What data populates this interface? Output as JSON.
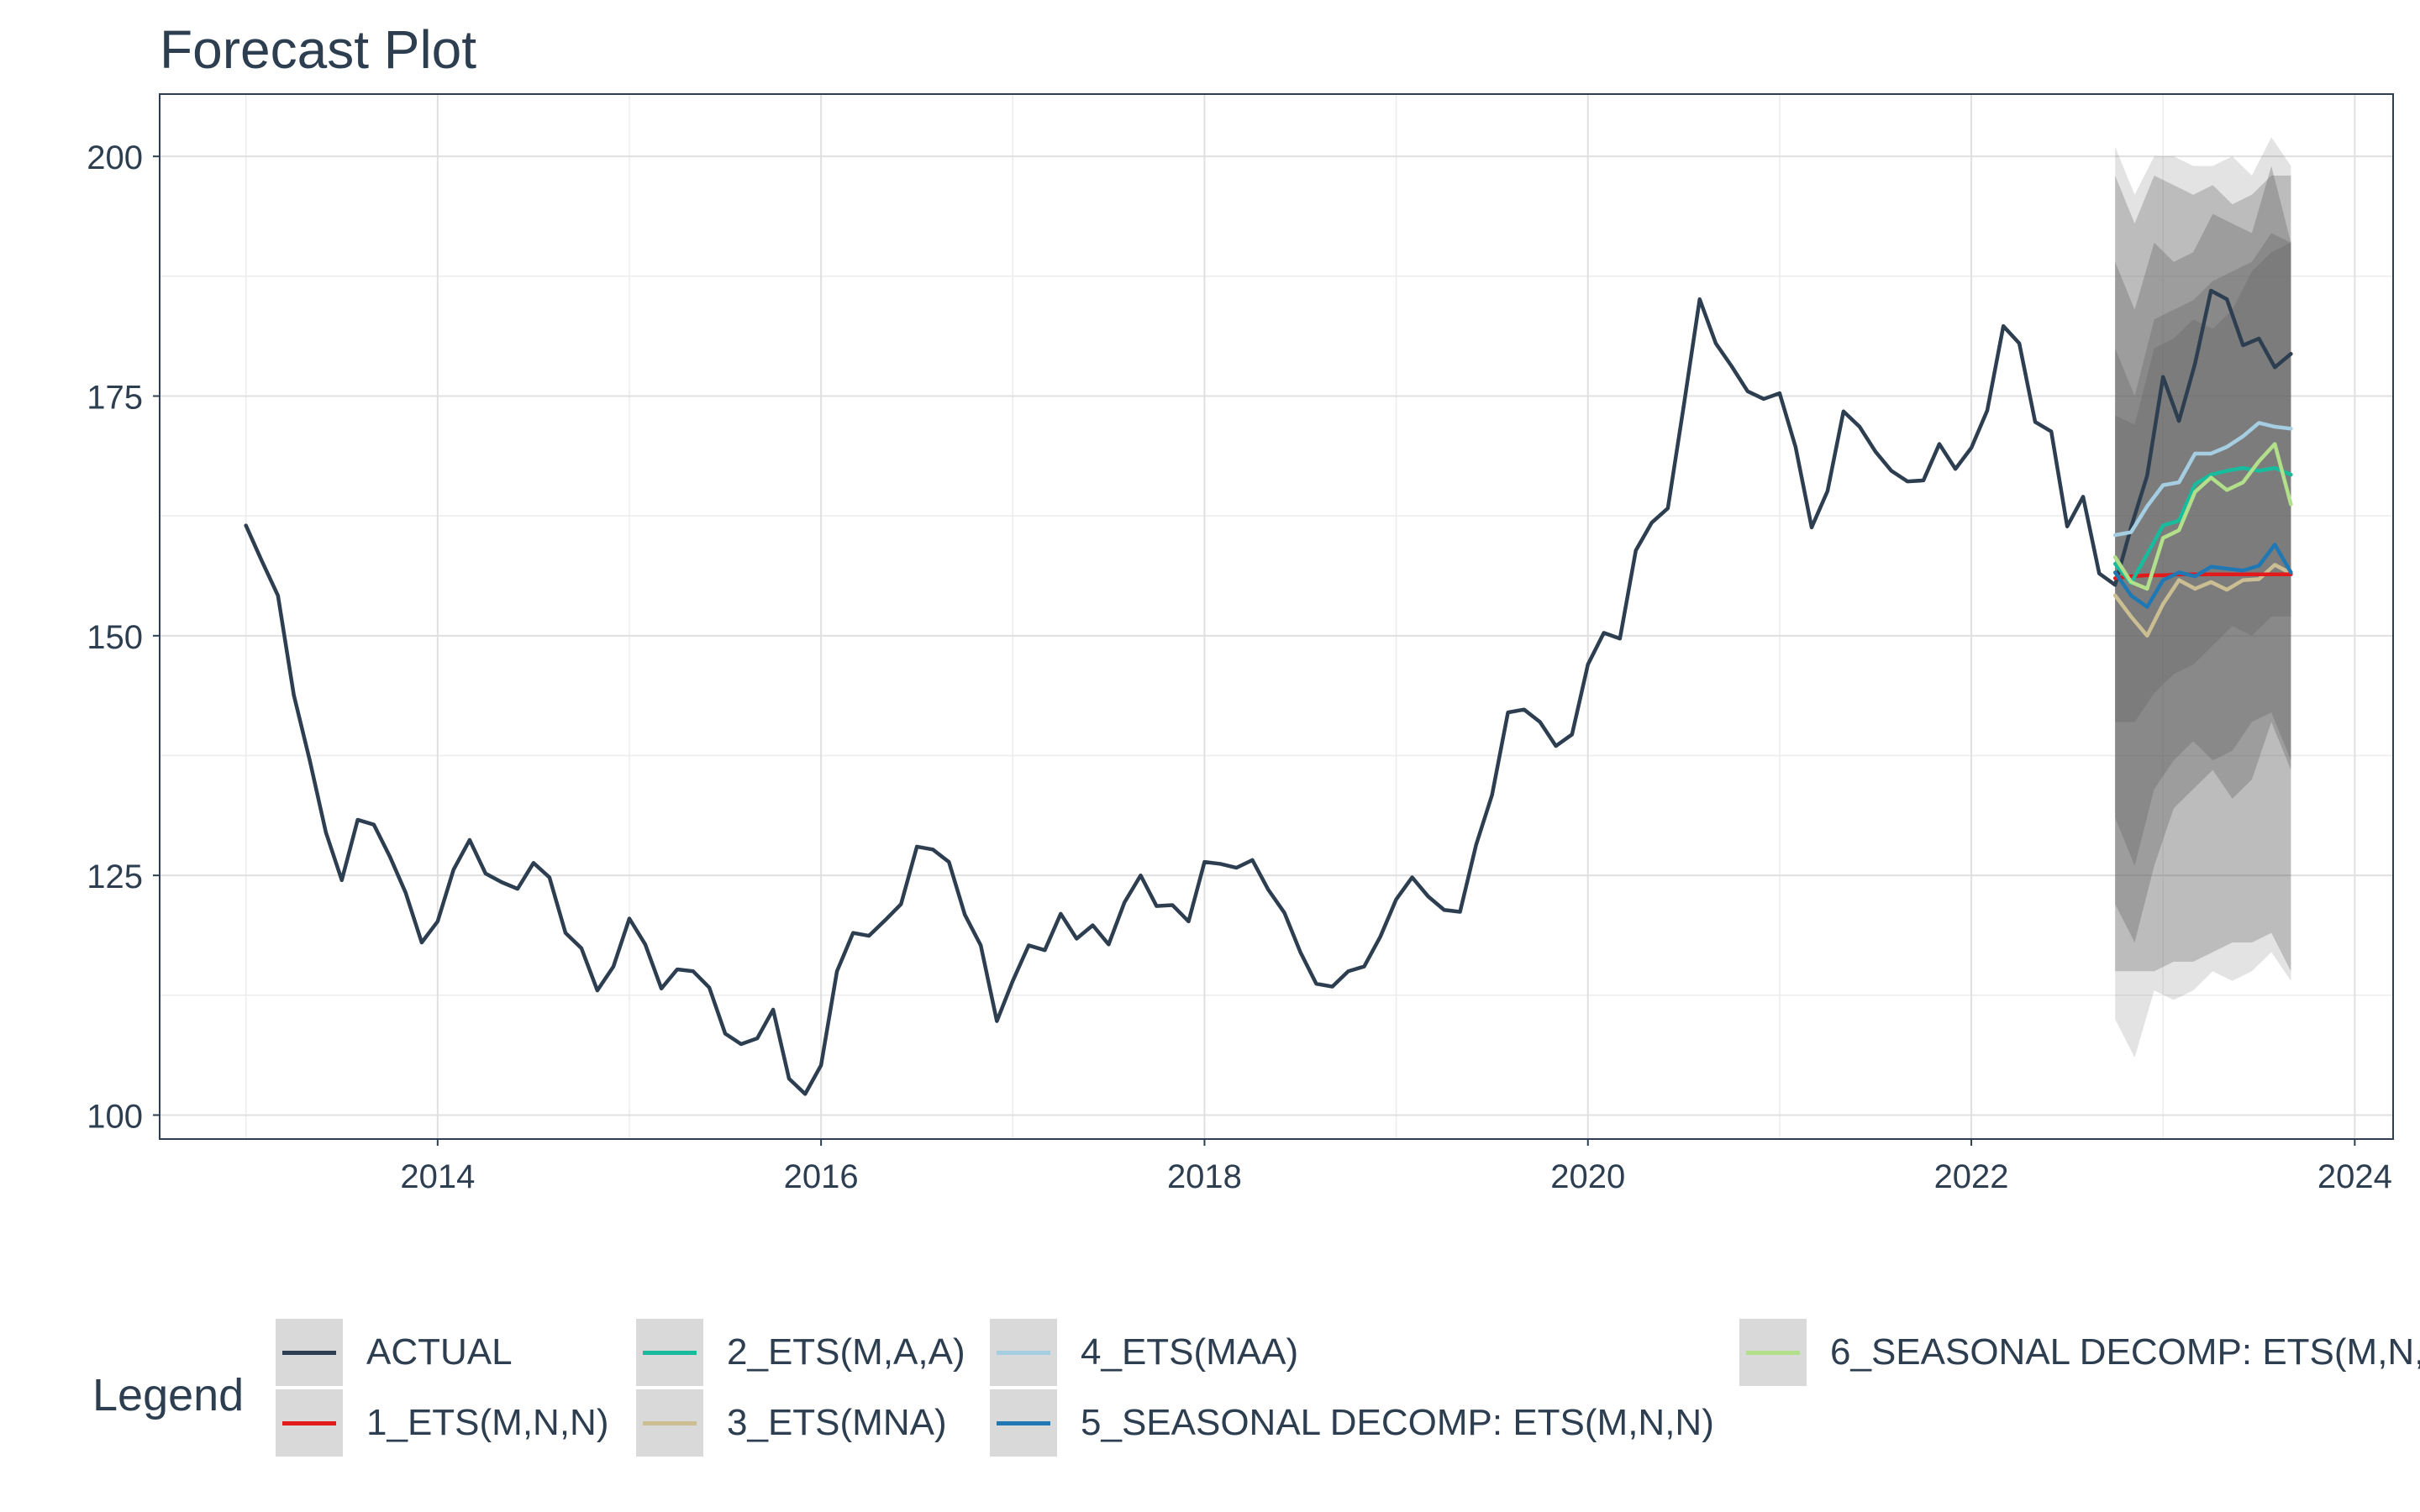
{
  "title": "Forecast Plot",
  "chart_data": {
    "type": "line",
    "title": "Forecast Plot",
    "xlabel": "",
    "ylabel": "",
    "xlim": [
      2012.55,
      2024.2
    ],
    "ylim": [
      97.5,
      206.5
    ],
    "x_ticks": [
      2014,
      2016,
      2018,
      2020,
      2022,
      2024
    ],
    "y_ticks": [
      100,
      125,
      150,
      175,
      200
    ],
    "grid": true,
    "legend_position": "bottom",
    "legend_title": "Legend",
    "series": [
      {
        "name": "ACTUAL",
        "color": "#2c3e50",
        "x": [
          2013.0,
          2013.083,
          2013.167,
          2013.25,
          2013.333,
          2013.417,
          2013.5,
          2013.583,
          2013.667,
          2013.75,
          2013.833,
          2013.917,
          2014.0,
          2014.083,
          2014.167,
          2014.25,
          2014.333,
          2014.417,
          2014.5,
          2014.583,
          2014.667,
          2014.75,
          2014.833,
          2014.917,
          2015.0,
          2015.083,
          2015.167,
          2015.25,
          2015.333,
          2015.417,
          2015.5,
          2015.583,
          2015.667,
          2015.75,
          2015.833,
          2015.917,
          2016.0,
          2016.083,
          2016.167,
          2016.25,
          2016.333,
          2016.417,
          2016.5,
          2016.583,
          2016.667,
          2016.75,
          2016.833,
          2016.917,
          2017.0,
          2017.083,
          2017.167,
          2017.25,
          2017.333,
          2017.417,
          2017.5,
          2017.583,
          2017.667,
          2017.75,
          2017.833,
          2017.917,
          2018.0,
          2018.083,
          2018.167,
          2018.25,
          2018.333,
          2018.417,
          2018.5,
          2018.583,
          2018.667,
          2018.75,
          2018.833,
          2018.917,
          2019.0,
          2019.083,
          2019.167,
          2019.25,
          2019.333,
          2019.417,
          2019.5,
          2019.583,
          2019.667,
          2019.75,
          2019.833,
          2019.917,
          2020.0,
          2020.083,
          2020.167,
          2020.25,
          2020.333,
          2020.417,
          2020.5,
          2020.583,
          2020.667,
          2020.75,
          2020.833,
          2020.917,
          2021.0,
          2021.083,
          2021.167,
          2021.25,
          2021.333,
          2021.417,
          2021.5,
          2021.583,
          2021.667,
          2021.75,
          2021.833,
          2021.917,
          2022.0,
          2022.083,
          2022.167,
          2022.25,
          2022.333,
          2022.417,
          2022.5,
          2022.583,
          2022.667,
          2022.75,
          2022.833,
          2022.917,
          2023.0,
          2023.083,
          2023.167,
          2023.25,
          2023.333,
          2023.417,
          2023.5,
          2023.583,
          2023.667
        ],
        "values": [
          161.5,
          157.8,
          154.2,
          143.8,
          137.0,
          129.5,
          124.5,
          130.8,
          130.3,
          127.0,
          123.2,
          118.0,
          120.2,
          125.6,
          128.7,
          125.2,
          124.3,
          123.6,
          126.3,
          124.8,
          119.0,
          117.4,
          113.0,
          115.5,
          120.5,
          117.8,
          113.2,
          115.2,
          115.0,
          113.3,
          108.5,
          107.4,
          108.0,
          111.0,
          103.8,
          102.2,
          105.2,
          115.0,
          119.0,
          118.7,
          120.3,
          122.0,
          128.0,
          127.7,
          126.4,
          120.9,
          117.7,
          109.8,
          114.0,
          117.7,
          117.2,
          121.0,
          118.4,
          119.8,
          117.8,
          122.2,
          125.0,
          121.8,
          121.9,
          120.2,
          126.4,
          126.2,
          125.8,
          126.6,
          123.5,
          121.1,
          117.0,
          113.7,
          113.4,
          115.0,
          115.5,
          118.6,
          122.5,
          124.8,
          122.8,
          121.4,
          121.2,
          128.2,
          133.4,
          142.0,
          142.3,
          141.0,
          138.5,
          139.7,
          147.0,
          150.3,
          149.7,
          158.9,
          161.8,
          163.3,
          174.0,
          185.1,
          180.5,
          178.1,
          175.5,
          174.7,
          175.3,
          169.7,
          161.3,
          165.1,
          173.4,
          171.8,
          169.2,
          167.2,
          166.1,
          166.2,
          170.0,
          167.4,
          169.6,
          173.5,
          182.3,
          180.5,
          172.3,
          171.3,
          161.4,
          164.5,
          156.5,
          155.3,
          161.3,
          166.7,
          177.0,
          172.4,
          178.4,
          186.0,
          185.1,
          180.3,
          181.0,
          178.0,
          179.4
        ]
      },
      {
        "name": "1_ETS(M,N,N)",
        "color": "#e31a1c",
        "x": [
          2022.75,
          2022.833,
          2022.917,
          2023.0,
          2023.083,
          2023.167,
          2023.25,
          2023.333,
          2023.417,
          2023.5,
          2023.583,
          2023.667
        ],
        "values": [
          156.0,
          156.2,
          156.3,
          156.3,
          156.4,
          156.4,
          156.4,
          156.4,
          156.4,
          156.4,
          156.4,
          156.4
        ]
      },
      {
        "name": "2_ETS(M,A,A)",
        "color": "#18bc9c",
        "x": [
          2022.75,
          2022.833,
          2022.917,
          2023.0,
          2023.083,
          2023.167,
          2023.25,
          2023.333,
          2023.417,
          2023.5,
          2023.583,
          2023.667
        ],
        "values": [
          157.5,
          155.5,
          158.5,
          161.5,
          162.0,
          165.8,
          166.8,
          167.2,
          167.5,
          167.2,
          167.5,
          166.8
        ]
      },
      {
        "name": "3_ETS(MNA)",
        "color": "#ccbe93",
        "x": [
          2022.75,
          2022.833,
          2022.917,
          2023.0,
          2023.083,
          2023.167,
          2023.25,
          2023.333,
          2023.417,
          2023.5,
          2023.583,
          2023.667
        ],
        "values": [
          154.2,
          152.0,
          150.0,
          153.3,
          155.8,
          154.9,
          155.6,
          154.8,
          155.8,
          155.9,
          157.4,
          156.5
        ]
      },
      {
        "name": "4_ETS(MAA)",
        "color": "#a6cee3",
        "x": [
          2022.75,
          2022.833,
          2022.917,
          2023.0,
          2023.083,
          2023.167,
          2023.25,
          2023.333,
          2023.417,
          2023.5,
          2023.583,
          2023.667
        ],
        "values": [
          160.5,
          160.8,
          163.5,
          165.7,
          166.0,
          169.0,
          169.0,
          169.7,
          170.8,
          172.2,
          171.8,
          171.6
        ]
      },
      {
        "name": "5_SEASONAL DECOMP: ETS(M,N,N)",
        "color": "#1f78b4",
        "x": [
          2022.75,
          2022.833,
          2022.917,
          2023.0,
          2023.083,
          2023.167,
          2023.25,
          2023.333,
          2023.417,
          2023.5,
          2023.583,
          2023.667
        ],
        "values": [
          156.6,
          154.2,
          153.0,
          155.8,
          156.6,
          156.2,
          157.2,
          157.0,
          156.8,
          157.3,
          159.5,
          156.6
        ]
      },
      {
        "name": "6_SEASONAL DECOMP: ETS(M,N,",
        "color": "#b2df8a",
        "x": [
          2022.75,
          2022.833,
          2022.917,
          2023.0,
          2023.083,
          2023.167,
          2023.25,
          2023.333,
          2023.417,
          2023.5,
          2023.583,
          2023.667
        ],
        "values": [
          158.2,
          155.6,
          154.9,
          160.2,
          161.0,
          165.0,
          166.5,
          165.2,
          166.0,
          168.2,
          170.0,
          163.7
        ]
      }
    ],
    "bands": [
      {
        "x": [
          2022.75,
          2023.667
        ],
        "values": [
          [
            110,
            201
          ],
          [
            106,
            196
          ],
          [
            113,
            200
          ],
          [
            112,
            200
          ],
          [
            113,
            199
          ],
          [
            115,
            199
          ],
          [
            114,
            200
          ],
          [
            115,
            198
          ],
          [
            117,
            202
          ],
          [
            114,
            199
          ]
        ],
        "opacity": 0.18,
        "color": "#646464"
      },
      {
        "x": [
          2022.75,
          2023.667
        ],
        "values": [
          [
            115,
            198
          ],
          [
            115,
            193
          ],
          [
            115,
            198
          ],
          [
            116,
            197
          ],
          [
            116,
            196
          ],
          [
            117,
            197
          ],
          [
            118,
            195
          ],
          [
            118,
            196
          ],
          [
            119,
            198
          ],
          [
            115,
            198
          ]
        ],
        "opacity": 0.3,
        "color": "#646464"
      },
      {
        "x": [
          2022.75,
          2023.667
        ],
        "values": [
          [
            122,
            189
          ],
          [
            118,
            184
          ],
          [
            126,
            191
          ],
          [
            132,
            189
          ],
          [
            134,
            190
          ],
          [
            136,
            194
          ],
          [
            133,
            193
          ],
          [
            135,
            192
          ],
          [
            141,
            199
          ],
          [
            136,
            191
          ]
        ],
        "opacity": 0.35,
        "color": "#646464"
      },
      {
        "x": [
          2022.75,
          2023.667
        ],
        "values": [
          [
            131,
            180
          ],
          [
            126,
            175
          ],
          [
            134,
            183
          ],
          [
            137,
            184
          ],
          [
            139,
            185
          ],
          [
            137,
            187
          ],
          [
            138,
            188
          ],
          [
            141,
            189
          ],
          [
            142,
            192
          ],
          [
            137,
            191
          ]
        ],
        "opacity": 0.35,
        "color": "#646464"
      },
      {
        "x": [
          2022.75,
          2023.667
        ],
        "values": [
          [
            141,
            173
          ],
          [
            141,
            172
          ],
          [
            144,
            180
          ],
          [
            146,
            181
          ],
          [
            147,
            183
          ],
          [
            149,
            182
          ],
          [
            151,
            184
          ],
          [
            150,
            188
          ],
          [
            152,
            190
          ],
          [
            152,
            191
          ]
        ],
        "opacity": 0.35,
        "color": "#646464"
      }
    ]
  },
  "legend": {
    "title": "Legend",
    "items": [
      {
        "label": "ACTUAL",
        "color": "#2c3e50"
      },
      {
        "label": "1_ETS(M,N,N)",
        "color": "#e31a1c"
      },
      {
        "label": "2_ETS(M,A,A)",
        "color": "#18bc9c"
      },
      {
        "label": "3_ETS(MNA)",
        "color": "#ccbe93"
      },
      {
        "label": "4_ETS(MAA)",
        "color": "#a6cee3"
      },
      {
        "label": "5_SEASONAL DECOMP: ETS(M,N,N)",
        "color": "#1f78b4"
      },
      {
        "label": "6_SEASONAL DECOMP: ETS(M,N,",
        "color": "#b2df8a"
      }
    ]
  }
}
